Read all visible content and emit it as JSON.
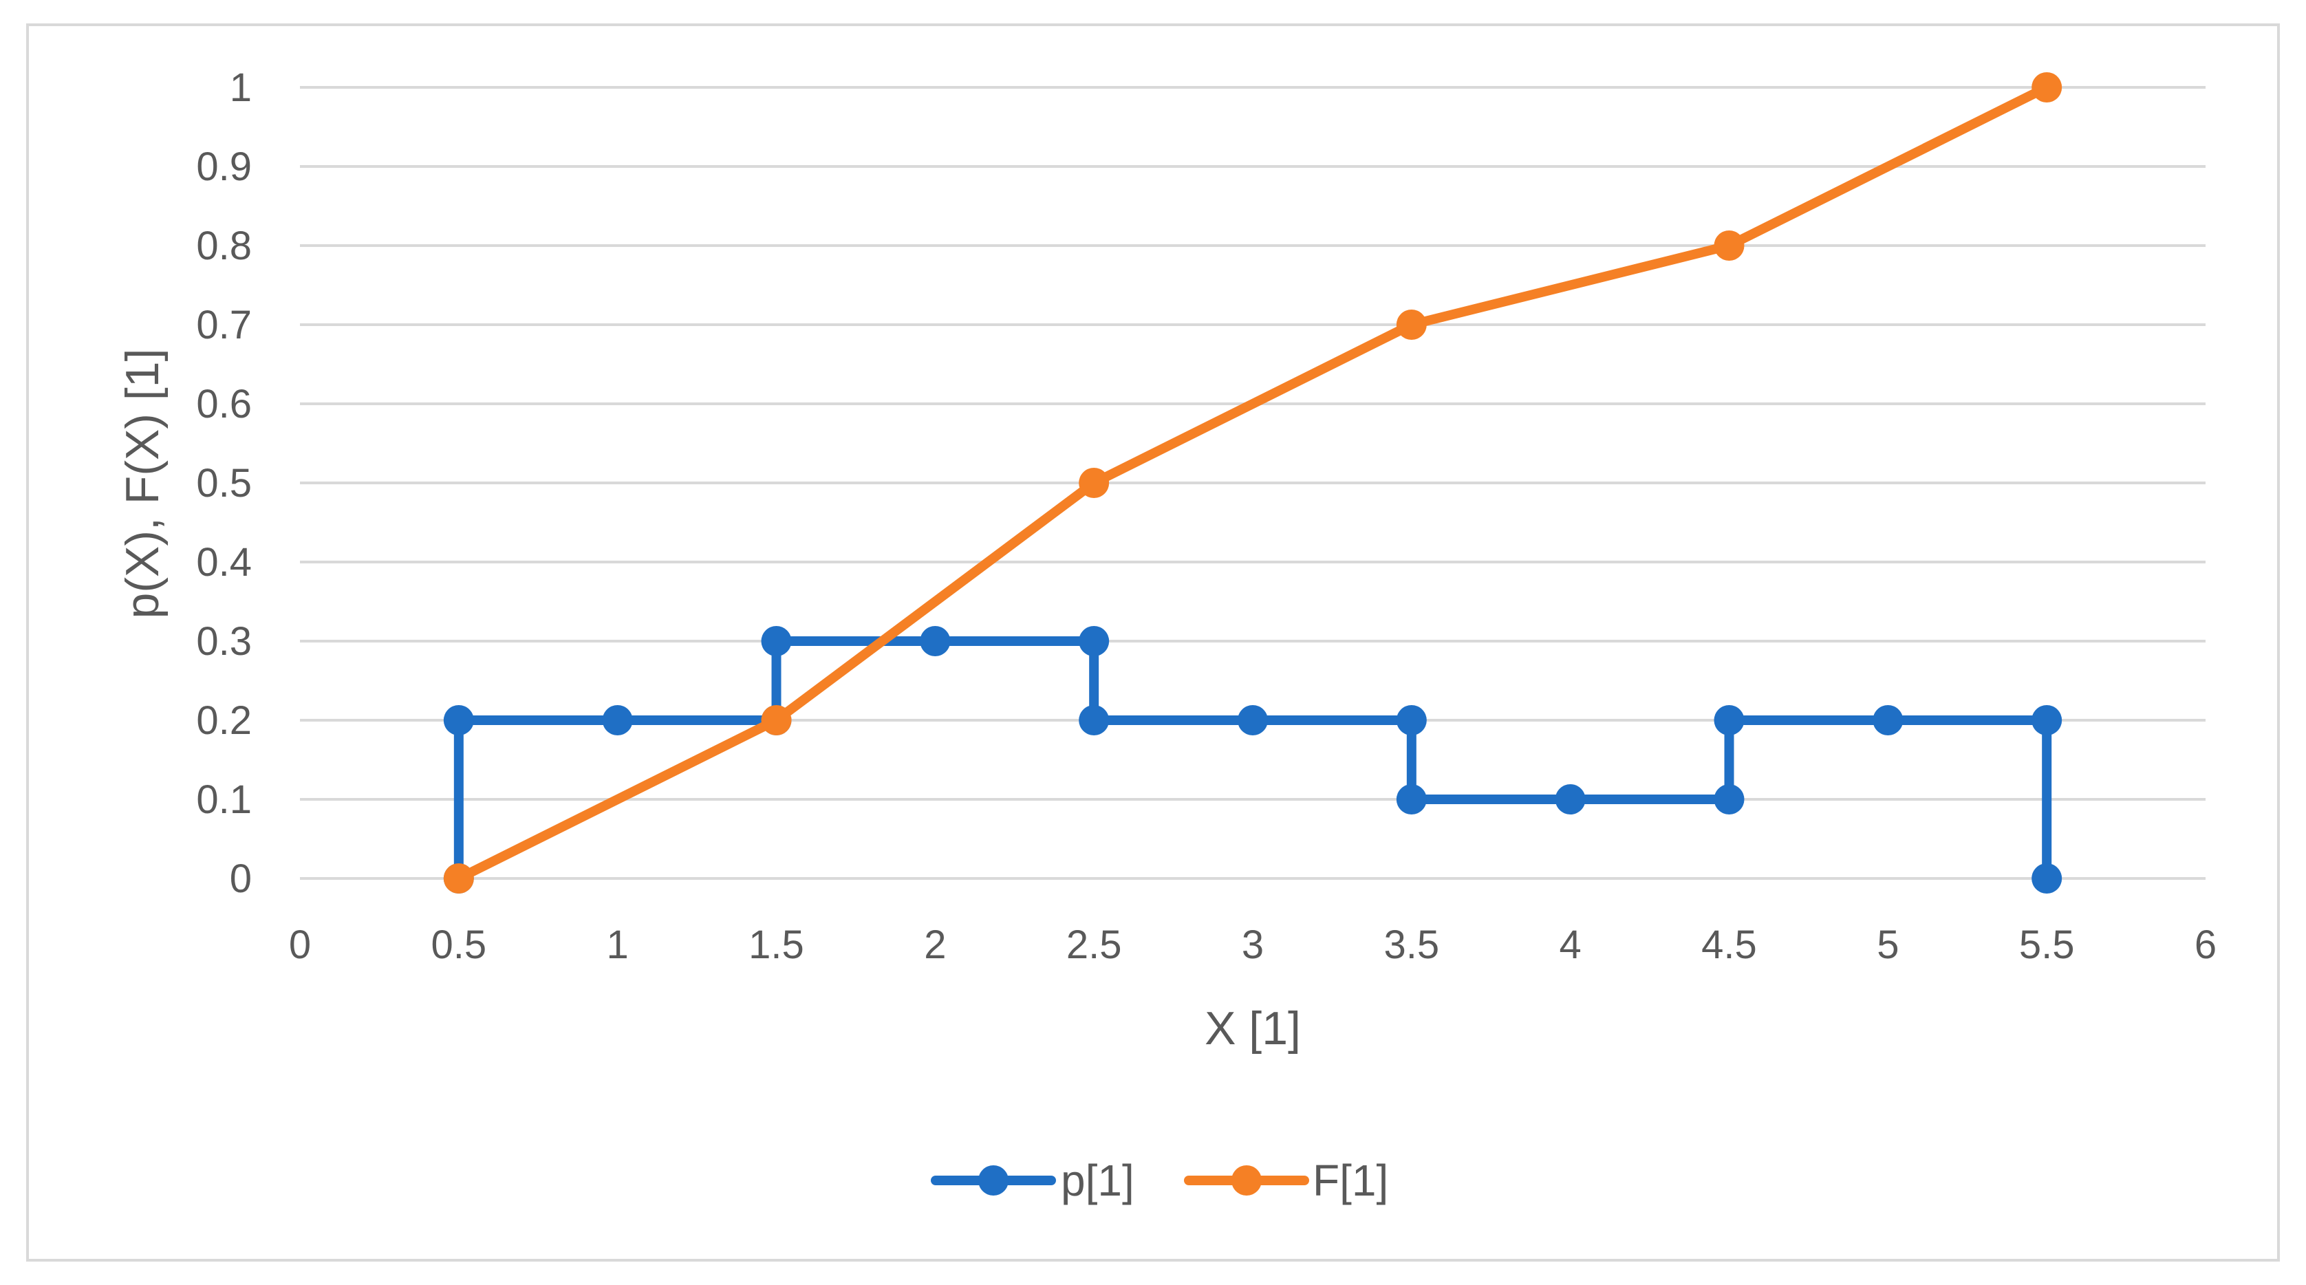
{
  "chart_data": {
    "type": "line",
    "title": "",
    "xlabel": "X [1]",
    "ylabel": "p(X), F(X) [1]",
    "xlim": [
      0,
      6
    ],
    "ylim": [
      0,
      1
    ],
    "x_ticks": [
      "0",
      "0.5",
      "1",
      "1.5",
      "2",
      "2.5",
      "3",
      "3.5",
      "4",
      "4.5",
      "5",
      "5.5",
      "6"
    ],
    "y_ticks": [
      "0",
      "0.1",
      "0.2",
      "0.3",
      "0.4",
      "0.5",
      "0.6",
      "0.7",
      "0.8",
      "0.9",
      "1"
    ],
    "grid": "horizontal",
    "legend_position": "bottom",
    "series": [
      {
        "name": "p[1]",
        "color": "#1f6fc5",
        "x": [
          0.5,
          0.5,
          1,
          1.5,
          1.5,
          2,
          2.5,
          2.5,
          3,
          3.5,
          3.5,
          4,
          4.5,
          4.5,
          5,
          5.5,
          5.5
        ],
        "y": [
          0,
          0.2,
          0.2,
          0.2,
          0.3,
          0.3,
          0.3,
          0.2,
          0.2,
          0.2,
          0.1,
          0.1,
          0.1,
          0.2,
          0.2,
          0.2,
          0
        ]
      },
      {
        "name": "F[1]",
        "color": "#f58025",
        "x": [
          0.5,
          1.5,
          2.5,
          3.5,
          4.5,
          5.5
        ],
        "y": [
          0,
          0.2,
          0.5,
          0.7,
          0.8,
          1
        ]
      }
    ]
  }
}
